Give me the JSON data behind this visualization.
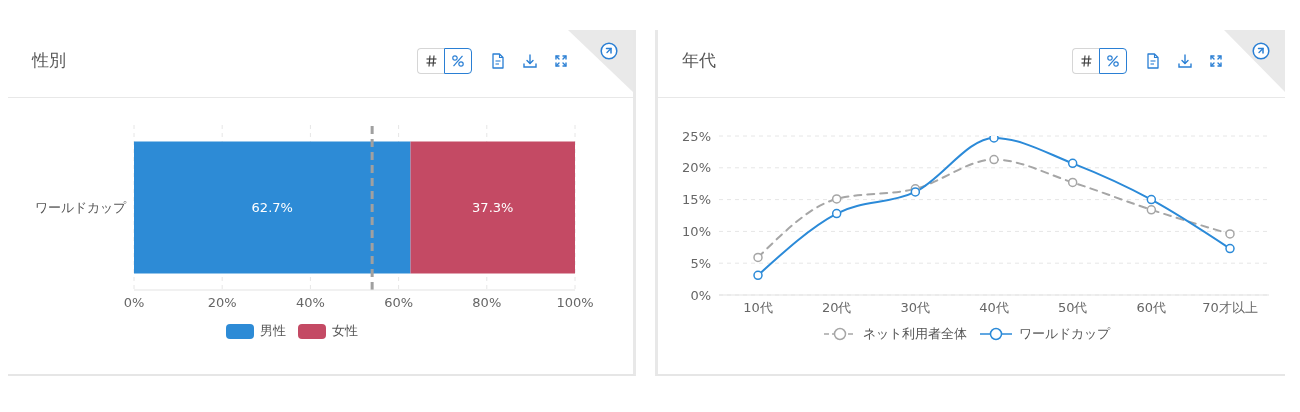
{
  "chart_data": [
    {
      "type": "bar",
      "title": "性別",
      "orientation": "horizontal",
      "stacked": true,
      "categories": [
        "ワールドカップ"
      ],
      "series": [
        {
          "name": "男性",
          "color": "#2d8bd6",
          "values": [
            62.7
          ],
          "value_labels": [
            "62.7%"
          ]
        },
        {
          "name": "女性",
          "color": "#c44a64",
          "values": [
            37.3
          ],
          "value_labels": [
            "37.3%"
          ]
        }
      ],
      "xlim": [
        0,
        100
      ],
      "xticks": [
        {
          "value": 0,
          "label": "0%"
        },
        {
          "value": 20,
          "label": "20%"
        },
        {
          "value": 40,
          "label": "40%"
        },
        {
          "value": 60,
          "label": "60%"
        },
        {
          "value": 80,
          "label": "80%"
        },
        {
          "value": 100,
          "label": "100%"
        }
      ],
      "ref_lines": [
        {
          "axis": "x",
          "value": 54,
          "color": "#a0a0a0",
          "line_style": "dashed"
        }
      ],
      "grid": "x",
      "legend": "bottom"
    },
    {
      "type": "line",
      "title": "年代",
      "categories": [
        "10代",
        "20代",
        "30代",
        "40代",
        "50代",
        "60代",
        "70才以上"
      ],
      "series": [
        {
          "name": "ネット利用者全体",
          "color": "#a6a6a6",
          "line_style": "dashed",
          "values": [
            5.9,
            15.1,
            16.7,
            21.3,
            17.7,
            13.4,
            9.6
          ]
        },
        {
          "name": "ワールドカップ",
          "color": "#2b8ad8",
          "line_style": "solid",
          "values": [
            3.1,
            12.8,
            16.2,
            24.7,
            20.7,
            15.0,
            7.3
          ]
        }
      ],
      "ylim": [
        0,
        25
      ],
      "yticks": [
        {
          "value": 0,
          "label": "0%"
        },
        {
          "value": 5,
          "label": "5%"
        },
        {
          "value": 10,
          "label": "10%"
        },
        {
          "value": 15,
          "label": "15%"
        },
        {
          "value": 20,
          "label": "20%"
        },
        {
          "value": 25,
          "label": "25%"
        }
      ],
      "grid": "y",
      "legend": "bottom",
      "marker": "circle"
    }
  ]
}
